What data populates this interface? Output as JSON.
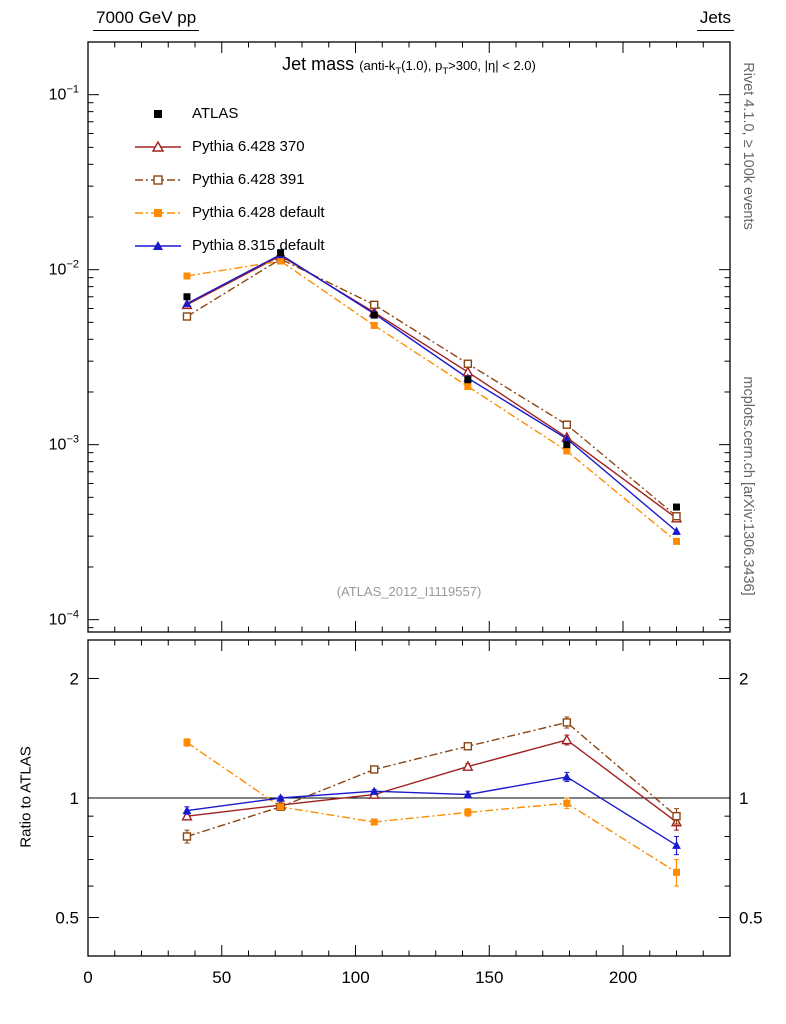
{
  "header": {
    "left": "7000 GeV pp",
    "right": "Jets"
  },
  "title": {
    "main": "Jet mass",
    "condition_segments": [
      {
        "text": "(anti-k",
        "sub": false
      },
      {
        "text": "T",
        "sub": true
      },
      {
        "text": "(1.0), p",
        "sub": false
      },
      {
        "text": "T",
        "sub": true
      },
      {
        "text": ">300, |η| < 2.0)",
        "sub": false
      }
    ]
  },
  "watermark": "(ATLAS_2012_I1119557)",
  "side_notes": {
    "top_right": "Rivet 4.1.0, ≥ 100k events",
    "bottom_right": "mcplots.cern.ch [arXiv:1306.3436]"
  },
  "ratio_ylabel": "Ratio to ATLAS",
  "chart_data": {
    "type": "line",
    "x": [
      37,
      72,
      107,
      142,
      179,
      220
    ],
    "x_axis": {
      "min": 0,
      "max": 240,
      "minor_step": 10,
      "major_ticks": [
        0,
        50,
        100,
        150,
        200
      ],
      "labels": [
        "0",
        "50",
        "100",
        "150",
        "200"
      ]
    },
    "main_panel": {
      "y_scale": "log",
      "ylim": [
        8.5e-05,
        0.2
      ],
      "y_major_exponents": [
        -1,
        -2,
        -3,
        -4
      ],
      "series": [
        {
          "name": "ATLAS",
          "color": "#000000",
          "marker": "square-filled",
          "line": "none",
          "values": [
            0.007,
            0.0125,
            0.0055,
            0.00235,
            0.001,
            0.00044
          ]
        },
        {
          "name": "Pythia 6.428 370",
          "color": "#a02020",
          "marker": "triangle-open",
          "line": "solid",
          "values": [
            0.0063,
            0.012,
            0.0057,
            0.0026,
            0.0011,
            0.00038
          ]
        },
        {
          "name": "Pythia 6.428 391",
          "color": "#8b4513",
          "marker": "square-open",
          "line": "dashdot",
          "values": [
            0.0054,
            0.0115,
            0.0063,
            0.0029,
            0.0013,
            0.00039
          ]
        },
        {
          "name": "Pythia 6.428 default",
          "color": "#ff8c00",
          "marker": "square-filled",
          "line": "dashdot",
          "values": [
            0.0092,
            0.0112,
            0.0048,
            0.00215,
            0.00092,
            0.00028
          ]
        },
        {
          "name": "Pythia 8.315 default",
          "color": "#1a1acd",
          "marker": "triangle-filled",
          "line": "solid",
          "values": [
            0.0064,
            0.0122,
            0.0056,
            0.0024,
            0.00108,
            0.00032
          ]
        }
      ]
    },
    "ratio_panel": {
      "y_scale": "log",
      "ylim": [
        0.4,
        2.5
      ],
      "y_ticks": [
        0.5,
        1,
        2
      ],
      "y_minor_ticks": [
        0.4,
        0.6,
        0.7,
        0.8,
        0.9
      ],
      "reference_line": 1,
      "series": [
        {
          "name": "Pythia 6.428 370",
          "values": [
            0.9,
            0.96,
            1.02,
            1.2,
            1.4,
            0.87
          ],
          "errors": [
            0.02,
            0.01,
            0.01,
            0.02,
            0.04,
            0.04
          ]
        },
        {
          "name": "Pythia 6.428 391",
          "values": [
            0.8,
            0.95,
            1.18,
            1.35,
            1.55,
            0.9
          ],
          "errors": [
            0.03,
            0.01,
            0.01,
            0.02,
            0.05,
            0.04
          ]
        },
        {
          "name": "Pythia 6.428 default",
          "values": [
            1.38,
            0.95,
            0.87,
            0.92,
            0.97,
            0.65
          ],
          "errors": [
            0.03,
            0.01,
            0.01,
            0.02,
            0.03,
            0.05
          ]
        },
        {
          "name": "Pythia 8.315 default",
          "values": [
            0.93,
            1.0,
            1.04,
            1.02,
            1.13,
            0.76
          ],
          "errors": [
            0.02,
            0.01,
            0.01,
            0.02,
            0.03,
            0.04
          ]
        }
      ]
    }
  }
}
